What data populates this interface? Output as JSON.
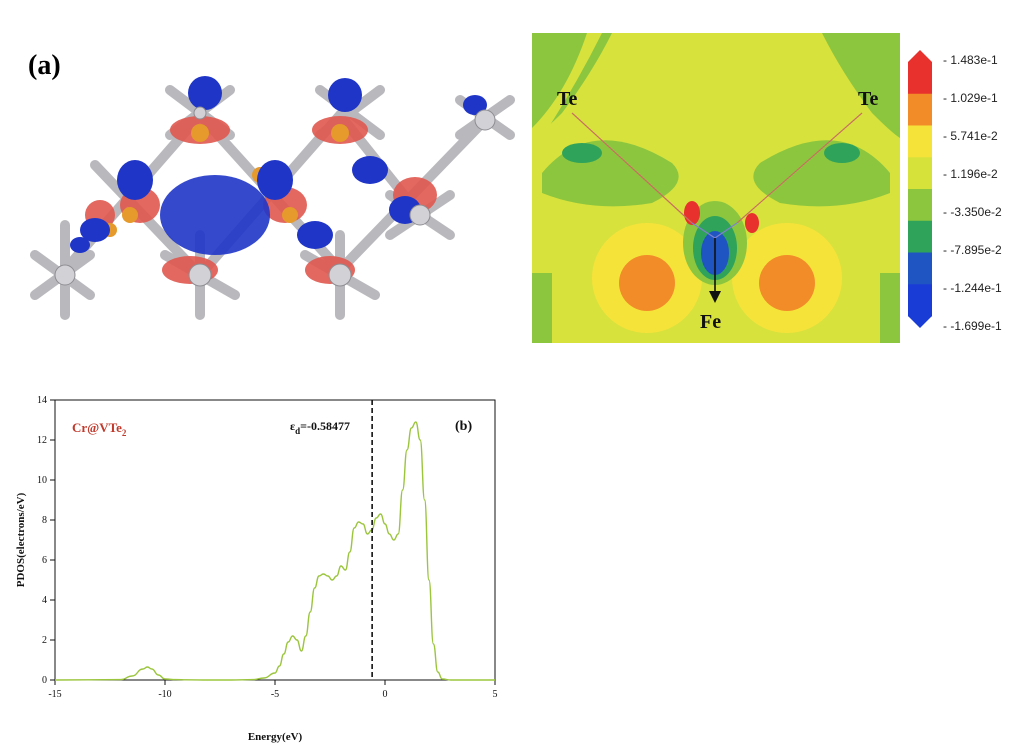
{
  "panel_a": {
    "label": "(a)",
    "map_labels": {
      "te_left": "Te",
      "te_right": "Te",
      "fe": "Fe"
    },
    "colorbar": {
      "ticks": [
        "1.483e-1",
        "1.029e-1",
        "5.741e-2",
        "1.196e-2",
        "-3.350e-2",
        "-7.895e-2",
        "-1.244e-1",
        "-1.699e-1"
      ],
      "colors": [
        "#e8302c",
        "#f28c28",
        "#f6e33a",
        "#d6e23a",
        "#8cc63f",
        "#2fa35a",
        "#1f55c2",
        "#1a3cd6"
      ]
    }
  },
  "chart_data": {
    "type": "line",
    "panel_label": "(b)",
    "title": "",
    "legend_text": "Cr@VTe",
    "legend_sub": "2",
    "xlabel": "Energy(eV)",
    "ylabel": "PDOS(electrons/eV)",
    "xlim": [
      -15,
      5
    ],
    "ylim": [
      0,
      14
    ],
    "xticks": [
      -15,
      -10,
      -5,
      0,
      5
    ],
    "yticks": [
      0,
      2,
      4,
      6,
      8,
      10,
      12,
      14
    ],
    "grid": false,
    "line_color": "#9bc53d",
    "d_band_center": {
      "x": -0.58477,
      "label_main": "ε",
      "label_sub": "d",
      "label_value": "=-0.58477"
    },
    "series": [
      {
        "x": [
          -15,
          -12,
          -11.5,
          -11,
          -10.8,
          -10.6,
          -10.3,
          -10,
          -9.5,
          -9,
          -8,
          -7,
          -6,
          -5.5,
          -5,
          -4.8,
          -4.6,
          -4.4,
          -4.2,
          -4.0,
          -3.8,
          -3.6,
          -3.4,
          -3.2,
          -3.0,
          -2.8,
          -2.6,
          -2.4,
          -2.2,
          -2.0,
          -1.8,
          -1.6,
          -1.4,
          -1.2,
          -1.0,
          -0.8,
          -0.6,
          -0.4,
          -0.2,
          0.0,
          0.2,
          0.4,
          0.6,
          0.8,
          1.0,
          1.2,
          1.4,
          1.6,
          1.8,
          2.0,
          2.2,
          2.4,
          2.6,
          3.0,
          4.0,
          5.0
        ],
        "y": [
          0,
          0.02,
          0.2,
          0.55,
          0.65,
          0.55,
          0.25,
          0.05,
          0.02,
          0.01,
          0,
          0,
          0.02,
          0.1,
          0.35,
          0.7,
          1.3,
          1.9,
          2.2,
          2.0,
          1.45,
          2.2,
          3.4,
          4.6,
          5.2,
          5.3,
          5.2,
          5.0,
          5.2,
          5.7,
          5.5,
          6.4,
          7.6,
          7.9,
          7.8,
          7.3,
          7.5,
          8.1,
          8.3,
          7.8,
          7.3,
          7.0,
          7.3,
          9.5,
          11.5,
          12.6,
          12.9,
          12.0,
          9.0,
          5.0,
          1.8,
          0.4,
          0.05,
          0,
          0,
          0
        ]
      }
    ]
  }
}
